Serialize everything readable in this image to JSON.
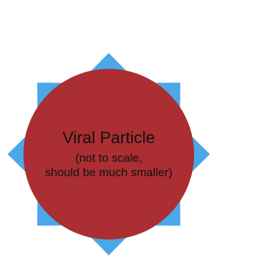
{
  "particle": {
    "title": "Viral Particle",
    "note_line1": "(not to scale,",
    "note_line2": "should be much smaller)",
    "body_color": "#AA2E32",
    "spike_color": "#4AA8E8",
    "text_color": "#111111",
    "spike_count": 8
  }
}
